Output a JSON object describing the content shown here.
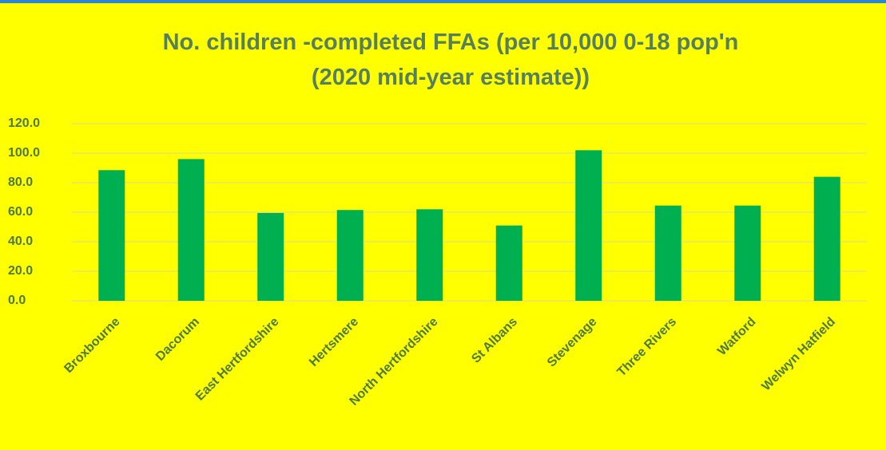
{
  "chart_data": {
    "type": "bar",
    "title": "No. children -completed FFAs (per 10,000 0-18 pop'n",
    "subtitle": "(2020 mid-year estimate))",
    "categories": [
      "Broxbourne",
      "Dacorum",
      "East Hertfordshire",
      "Hertsmere",
      "North Hertfordshire",
      "St Albans",
      "Stevenage",
      "Three Rivers",
      "Watford",
      "Welwyn Hatfield"
    ],
    "values": [
      88.5,
      96,
      59.5,
      61.5,
      62,
      51,
      102,
      64.5,
      64.5,
      84
    ],
    "color": "#00b050",
    "ylim": [
      0,
      120
    ],
    "yticks": [
      {
        "value": 0,
        "label": "0.0"
      },
      {
        "value": 20,
        "label": "20.0"
      },
      {
        "value": 40,
        "label": "40.0"
      },
      {
        "value": 60,
        "label": "60.0"
      },
      {
        "value": 80,
        "label": "80.0"
      },
      {
        "value": 100,
        "label": "100.0"
      },
      {
        "value": 120,
        "label": "120.0"
      }
    ],
    "grid": true
  }
}
